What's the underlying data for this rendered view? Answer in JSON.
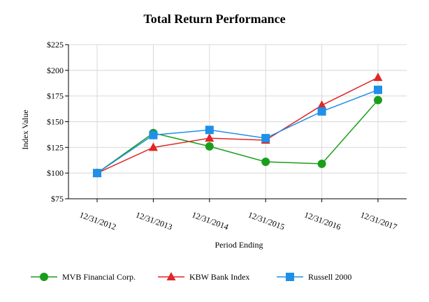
{
  "chart_data": {
    "type": "line",
    "title": "Total Return Performance",
    "xlabel": "Period Ending",
    "ylabel": "Index Value",
    "categories": [
      "12/31/2012",
      "12/31/2013",
      "12/31/2014",
      "12/31/2015",
      "12/31/2016",
      "12/31/2017"
    ],
    "yticks": [
      "$75",
      "$100",
      "$125",
      "$150",
      "$175",
      "$200",
      "$225"
    ],
    "ytick_values": [
      75,
      100,
      125,
      150,
      175,
      200,
      225
    ],
    "ylim": [
      75,
      225
    ],
    "grid": true,
    "legend_position": "bottom",
    "series": [
      {
        "name": "MVB Financial Corp.",
        "color": "#1a9e1a",
        "marker": "circle",
        "values": [
          100,
          139,
          126,
          111,
          109,
          171
        ]
      },
      {
        "name": "KBW Bank Index",
        "color": "#e02626",
        "marker": "triangle",
        "values": [
          100,
          125,
          134,
          132,
          166,
          193
        ]
      },
      {
        "name": "Russell 2000",
        "color": "#1e90e8",
        "marker": "square",
        "values": [
          100,
          137,
          142,
          134,
          160,
          181
        ]
      }
    ]
  }
}
